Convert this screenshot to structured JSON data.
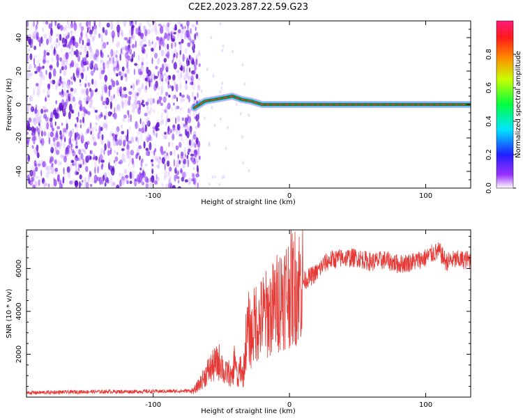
{
  "title": "C2E2.2023.287.22.59.G23",
  "chart_data": [
    {
      "type": "heatmap",
      "xlabel": "Height of straight line (km)",
      "ylabel": "Frequency (Hz)",
      "xlim": [
        -193,
        133
      ],
      "ylim": [
        -50,
        50
      ],
      "x_ticks": [
        -100,
        0,
        100
      ],
      "y_ticks": [
        -40,
        -20,
        0,
        20,
        40
      ],
      "noise_region_x": [
        -193,
        -70
      ],
      "signal_trace": [
        {
          "x": -70,
          "y": -2
        },
        {
          "x": -62,
          "y": 2
        },
        {
          "x": -55,
          "y": 3
        },
        {
          "x": -48,
          "y": 4
        },
        {
          "x": -42,
          "y": 5
        },
        {
          "x": -35,
          "y": 3
        },
        {
          "x": -28,
          "y": 2
        },
        {
          "x": -20,
          "y": 0
        },
        {
          "x": -10,
          "y": 0
        },
        {
          "x": 0,
          "y": 0
        },
        {
          "x": 50,
          "y": 0
        },
        {
          "x": 100,
          "y": 0
        },
        {
          "x": 133,
          "y": 0
        }
      ],
      "colorbar": {
        "label": "Normalized spectral amplitude",
        "range": [
          0,
          1
        ],
        "ticks": [
          "0.0",
          "0.2",
          "0.4",
          "0.6",
          "0.8"
        ]
      },
      "colors": {
        "noise": "#7b22e0",
        "band": "#2e7d32",
        "peak": "#e53935"
      }
    },
    {
      "type": "line",
      "xlabel": "Height of straight line (km)",
      "ylabel": "SNR (10 * v/v)",
      "xlim": [
        -193,
        133
      ],
      "ylim": [
        0,
        7800
      ],
      "x_ticks": [
        -100,
        0,
        100
      ],
      "y_ticks": [
        2000,
        4000,
        6000
      ],
      "series": [
        {
          "color": "#e53935",
          "x": [
            -193,
            -150,
            -110,
            -80,
            -70,
            -65,
            -60,
            -55,
            -50,
            -48,
            -45,
            -42,
            -40,
            -38,
            -36,
            -34,
            -32,
            -30,
            -28,
            -25,
            -22,
            -20,
            -15,
            -10,
            -5,
            0,
            5,
            10,
            15,
            20,
            25,
            30,
            40,
            50,
            60,
            70,
            80,
            90,
            100,
            105,
            110,
            115,
            120,
            133
          ],
          "y": [
            200,
            250,
            260,
            280,
            300,
            700,
            1200,
            1500,
            1700,
            1000,
            1200,
            800,
            2000,
            600,
            1500,
            900,
            2600,
            3200,
            2800,
            3600,
            3400,
            3800,
            3900,
            4300,
            4800,
            5000,
            5200,
            5400,
            5600,
            5800,
            6200,
            6400,
            6500,
            6500,
            6300,
            6400,
            6200,
            6300,
            6500,
            6700,
            6800,
            6300,
            6400,
            6400
          ]
        }
      ]
    }
  ]
}
